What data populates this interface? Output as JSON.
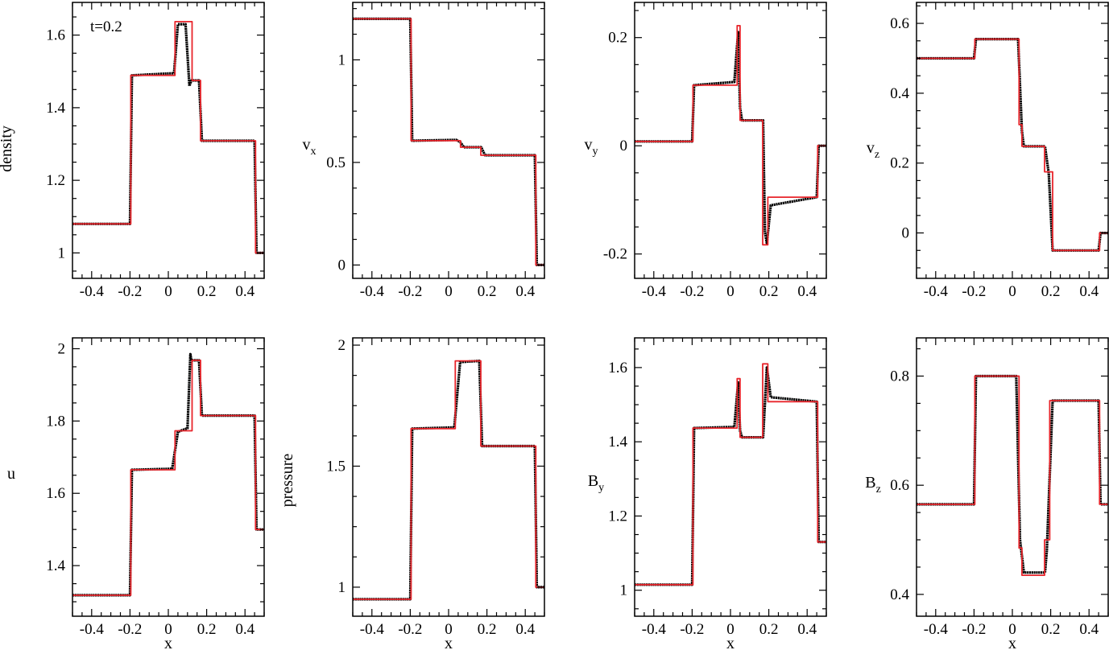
{
  "figure": {
    "annotation": "t=0.2",
    "colors": {
      "numerical": "#000000",
      "exact": "#e8252b"
    }
  },
  "chart_data": [
    {
      "type": "line",
      "ylabel": "density",
      "xlabel": "",
      "xlim": [
        -0.5,
        0.5
      ],
      "ylim": [
        0.93,
        1.69
      ],
      "xticks": [
        -0.4,
        -0.2,
        0,
        0.2,
        0.4
      ],
      "xticklabels": [
        "-0.4",
        "-0.2",
        "0",
        "0.2",
        "0.4"
      ],
      "yticks": [
        1.0,
        1.2,
        1.4,
        1.6
      ],
      "yticklabels": [
        "1",
        "1.2",
        "1.4",
        "1.6"
      ],
      "series": [
        {
          "role": "exact",
          "x": [
            -0.5,
            -0.196,
            -0.196,
            0.035,
            0.035,
            0.104,
            0.104,
            0.124,
            0.124,
            0.168,
            0.168,
            0.455,
            0.455,
            0.5
          ],
          "y": [
            1.08,
            1.08,
            1.489,
            1.489,
            1.637,
            1.637,
            1.637,
            1.637,
            1.475,
            1.475,
            1.309,
            1.309,
            1.0,
            1.0
          ]
        },
        {
          "role": "numerical",
          "x": [
            -0.5,
            -0.2,
            -0.19,
            0.03,
            0.05,
            0.09,
            0.11,
            0.12,
            0.16,
            0.175,
            0.45,
            0.46,
            0.5
          ],
          "y": [
            1.08,
            1.08,
            1.489,
            1.495,
            1.63,
            1.63,
            1.46,
            1.475,
            1.475,
            1.309,
            1.309,
            1.0,
            1.0
          ]
        }
      ]
    },
    {
      "type": "line",
      "ylabel": "v",
      "ylabel_sub": "x",
      "xlabel": "",
      "xlim": [
        -0.5,
        0.5
      ],
      "ylim": [
        -0.065,
        1.28
      ],
      "xticks": [
        -0.4,
        -0.2,
        0,
        0.2,
        0.4
      ],
      "xticklabels": [
        "-0.4",
        "-0.2",
        "0",
        "0.2",
        "0.4"
      ],
      "yticks": [
        0,
        0.5,
        1.0
      ],
      "yticklabels": [
        "0",
        "0.5",
        "1"
      ],
      "series": [
        {
          "role": "exact",
          "x": [
            -0.5,
            -0.196,
            -0.196,
            0.062,
            0.062,
            0.168,
            0.168,
            0.455,
            0.455,
            0.5
          ],
          "y": [
            1.2,
            1.2,
            0.606,
            0.606,
            0.574,
            0.574,
            0.535,
            0.535,
            0.0,
            0.0
          ]
        },
        {
          "role": "numerical",
          "x": [
            -0.5,
            -0.2,
            -0.19,
            0.04,
            0.06,
            0.08,
            0.17,
            0.19,
            0.45,
            0.46,
            0.5
          ],
          "y": [
            1.2,
            1.2,
            0.606,
            0.61,
            0.6,
            0.574,
            0.574,
            0.535,
            0.535,
            0.0,
            0.0
          ]
        }
      ]
    },
    {
      "type": "line",
      "ylabel": "v",
      "ylabel_sub": "y",
      "xlabel": "",
      "xlim": [
        -0.5,
        0.5
      ],
      "ylim": [
        -0.245,
        0.265
      ],
      "xticks": [
        -0.4,
        -0.2,
        0,
        0.2,
        0.4
      ],
      "xticklabels": [
        "-0.4",
        "-0.2",
        "0",
        "0.2",
        "0.4"
      ],
      "yticks": [
        -0.2,
        0,
        0.2
      ],
      "yticklabels": [
        "-0.2",
        "0",
        "0.2"
      ],
      "series": [
        {
          "role": "exact",
          "x": [
            -0.5,
            -0.196,
            -0.196,
            0.035,
            0.035,
            0.05,
            0.05,
            0.168,
            0.168,
            0.195,
            0.195,
            0.455,
            0.455,
            0.5
          ],
          "y": [
            0.008,
            0.008,
            0.112,
            0.112,
            0.222,
            0.222,
            0.047,
            0.047,
            -0.183,
            -0.183,
            -0.095,
            -0.095,
            0.0,
            0.0
          ]
        },
        {
          "role": "numerical",
          "x": [
            -0.5,
            -0.2,
            -0.19,
            0.02,
            0.04,
            0.05,
            0.06,
            0.17,
            0.18,
            0.19,
            0.21,
            0.45,
            0.46,
            0.5
          ],
          "y": [
            0.008,
            0.008,
            0.112,
            0.118,
            0.21,
            0.07,
            0.047,
            0.047,
            -0.16,
            -0.18,
            -0.11,
            -0.095,
            0.0,
            0.0
          ]
        }
      ]
    },
    {
      "type": "line",
      "ylabel": "v",
      "ylabel_sub": "z",
      "xlabel": "",
      "xlim": [
        -0.5,
        0.5
      ],
      "ylim": [
        -0.13,
        0.66
      ],
      "xticks": [
        -0.4,
        -0.2,
        0,
        0.2,
        0.4
      ],
      "xticklabels": [
        "-0.4",
        "-0.2",
        "0",
        "0.2",
        "0.4"
      ],
      "yticks": [
        0,
        0.2,
        0.4,
        0.6
      ],
      "yticklabels": [
        "0",
        "0.2",
        "0.4",
        "0.6"
      ],
      "series": [
        {
          "role": "exact",
          "x": [
            -0.5,
            -0.196,
            -0.196,
            0.035,
            0.035,
            0.05,
            0.05,
            0.168,
            0.168,
            0.21,
            0.21,
            0.455,
            0.455,
            0.5
          ],
          "y": [
            0.5,
            0.5,
            0.555,
            0.555,
            0.31,
            0.31,
            0.248,
            0.248,
            0.175,
            0.175,
            -0.05,
            -0.05,
            0.0,
            0.0
          ]
        },
        {
          "role": "numerical",
          "x": [
            -0.5,
            -0.2,
            -0.19,
            0.03,
            0.05,
            0.06,
            0.17,
            0.19,
            0.21,
            0.45,
            0.46,
            0.5
          ],
          "y": [
            0.5,
            0.5,
            0.555,
            0.555,
            0.29,
            0.248,
            0.248,
            0.17,
            -0.05,
            -0.05,
            0.0,
            0.0
          ]
        }
      ]
    },
    {
      "type": "line",
      "ylabel": "u",
      "xlabel": "x",
      "xlim": [
        -0.5,
        0.5
      ],
      "ylim": [
        1.26,
        2.03
      ],
      "xticks": [
        -0.4,
        -0.2,
        0,
        0.2,
        0.4
      ],
      "xticklabels": [
        "-0.4",
        "-0.2",
        "0",
        "0.2",
        "0.4"
      ],
      "yticks": [
        1.4,
        1.6,
        1.8,
        2.0
      ],
      "yticklabels": [
        "1.4",
        "1.6",
        "1.8",
        "2"
      ],
      "series": [
        {
          "role": "exact",
          "x": [
            -0.5,
            -0.196,
            -0.196,
            0.035,
            0.035,
            0.062,
            0.062,
            0.124,
            0.124,
            0.168,
            0.168,
            0.455,
            0.455,
            0.5
          ],
          "y": [
            1.318,
            1.318,
            1.665,
            1.665,
            1.773,
            1.773,
            1.773,
            1.773,
            1.968,
            1.968,
            1.815,
            1.815,
            1.5,
            1.5
          ]
        },
        {
          "role": "numerical",
          "x": [
            -0.5,
            -0.2,
            -0.19,
            0.02,
            0.05,
            0.1,
            0.115,
            0.12,
            0.16,
            0.175,
            0.45,
            0.46,
            0.5
          ],
          "y": [
            1.318,
            1.318,
            1.665,
            1.668,
            1.77,
            1.78,
            1.985,
            1.968,
            1.968,
            1.815,
            1.815,
            1.5,
            1.5
          ]
        }
      ]
    },
    {
      "type": "line",
      "ylabel": "pressure",
      "xlabel": "x",
      "xlim": [
        -0.5,
        0.5
      ],
      "ylim": [
        0.88,
        2.03
      ],
      "xticks": [
        -0.4,
        -0.2,
        0,
        0.2,
        0.4
      ],
      "xticklabels": [
        "-0.4",
        "-0.2",
        "0",
        "0.2",
        "0.4"
      ],
      "yticks": [
        1.0,
        1.5,
        2.0
      ],
      "yticklabels": [
        "1",
        "1.5",
        "2"
      ],
      "series": [
        {
          "role": "exact",
          "x": [
            -0.5,
            -0.196,
            -0.196,
            0.035,
            0.035,
            0.168,
            0.168,
            0.455,
            0.455,
            0.5
          ],
          "y": [
            0.95,
            0.95,
            1.655,
            1.655,
            1.935,
            1.935,
            1.583,
            1.583,
            1.0,
            1.0
          ]
        },
        {
          "role": "numerical",
          "x": [
            -0.5,
            -0.2,
            -0.19,
            0.03,
            0.06,
            0.16,
            0.175,
            0.45,
            0.46,
            0.5
          ],
          "y": [
            0.95,
            0.95,
            1.655,
            1.66,
            1.93,
            1.935,
            1.583,
            1.583,
            1.0,
            1.0
          ]
        }
      ]
    },
    {
      "type": "line",
      "ylabel": "B",
      "ylabel_sub": "y",
      "xlabel": "x",
      "xlim": [
        -0.5,
        0.5
      ],
      "ylim": [
        0.93,
        1.68
      ],
      "xticks": [
        -0.4,
        -0.2,
        0,
        0.2,
        0.4
      ],
      "xticklabels": [
        "-0.4",
        "-0.2",
        "0",
        "0.2",
        "0.4"
      ],
      "yticks": [
        1.0,
        1.2,
        1.4,
        1.6
      ],
      "yticklabels": [
        "1",
        "1.2",
        "1.4",
        "1.6"
      ],
      "series": [
        {
          "role": "exact",
          "x": [
            -0.5,
            -0.196,
            -0.196,
            0.035,
            0.035,
            0.05,
            0.05,
            0.168,
            0.168,
            0.195,
            0.195,
            0.455,
            0.455,
            0.5
          ],
          "y": [
            1.015,
            1.015,
            1.437,
            1.437,
            1.57,
            1.57,
            1.412,
            1.412,
            1.61,
            1.61,
            1.508,
            1.508,
            1.13,
            1.13
          ]
        },
        {
          "role": "numerical",
          "x": [
            -0.5,
            -0.2,
            -0.19,
            0.02,
            0.04,
            0.05,
            0.06,
            0.17,
            0.19,
            0.21,
            0.45,
            0.46,
            0.5
          ],
          "y": [
            1.015,
            1.015,
            1.437,
            1.44,
            1.56,
            1.43,
            1.412,
            1.412,
            1.6,
            1.52,
            1.508,
            1.13,
            1.13
          ]
        }
      ]
    },
    {
      "type": "line",
      "ylabel": "B",
      "ylabel_sub": "z",
      "xlabel": "x",
      "xlim": [
        -0.5,
        0.5
      ],
      "ylim": [
        0.36,
        0.87
      ],
      "xticks": [
        -0.4,
        -0.2,
        0,
        0.2,
        0.4
      ],
      "xticklabels": [
        "-0.4",
        "-0.2",
        "0",
        "0.2",
        "0.4"
      ],
      "yticks": [
        0.4,
        0.6,
        0.8
      ],
      "yticklabels": [
        "0.4",
        "0.6",
        "0.8"
      ],
      "series": [
        {
          "role": "exact",
          "x": [
            -0.5,
            -0.196,
            -0.196,
            0.035,
            0.035,
            0.05,
            0.05,
            0.168,
            0.168,
            0.195,
            0.195,
            0.455,
            0.455,
            0.5
          ],
          "y": [
            0.565,
            0.565,
            0.8,
            0.8,
            0.485,
            0.485,
            0.435,
            0.435,
            0.5,
            0.5,
            0.755,
            0.755,
            0.565,
            0.565
          ]
        },
        {
          "role": "numerical",
          "x": [
            -0.5,
            -0.2,
            -0.19,
            0.02,
            0.04,
            0.06,
            0.17,
            0.18,
            0.21,
            0.45,
            0.46,
            0.5
          ],
          "y": [
            0.565,
            0.565,
            0.8,
            0.8,
            0.5,
            0.44,
            0.44,
            0.48,
            0.755,
            0.755,
            0.565,
            0.565
          ]
        }
      ]
    }
  ]
}
